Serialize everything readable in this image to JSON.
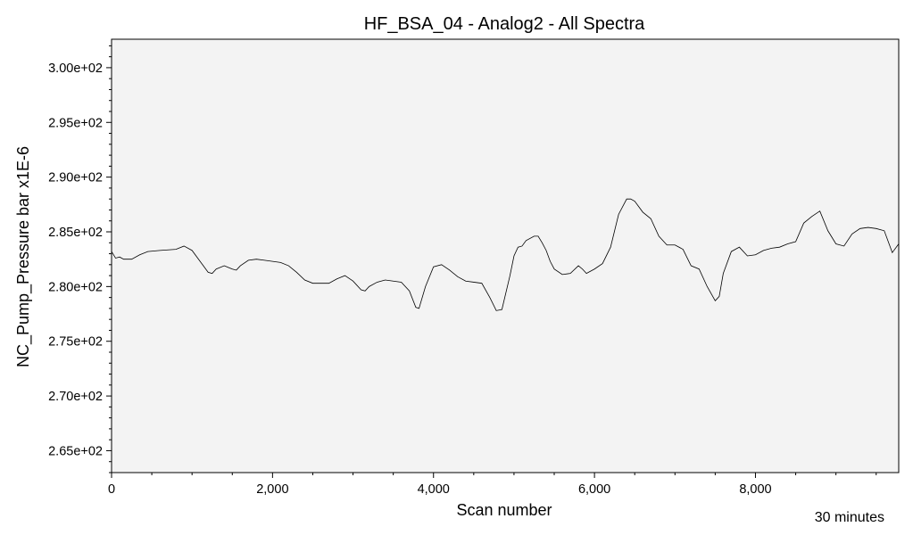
{
  "chart_data": {
    "type": "line",
    "title": "HF_BSA_04 - Analog2 - All Spectra",
    "xlabel": "Scan number",
    "ylabel": "NC_Pump_Pressure bar x1E-6",
    "xlim": [
      0,
      9780
    ],
    "ylim": [
      263,
      302.6
    ],
    "x_ticks": [
      0,
      2000,
      4000,
      6000,
      8000
    ],
    "x_tick_labels": [
      "0",
      "2,000",
      "4,000",
      "6,000",
      "8,000"
    ],
    "y_ticks": [
      265,
      270,
      275,
      280,
      285,
      290,
      295,
      300
    ],
    "y_tick_labels": [
      "2.65e+02",
      "2.70e+02",
      "2.75e+02",
      "2.80e+02",
      "2.85e+02",
      "2.90e+02",
      "2.95e+02",
      "3.00e+02"
    ],
    "plot_background": "#f3f3f3",
    "line_color": "#000000",
    "series": [
      {
        "x": [
          0,
          50,
          100,
          150,
          250,
          350,
          450,
          600,
          800,
          900,
          1000,
          1100,
          1200,
          1250,
          1300,
          1400,
          1500,
          1550,
          1600,
          1700,
          1800,
          1900,
          2000,
          2100,
          2200,
          2300,
          2400,
          2500,
          2600,
          2700,
          2800,
          2900,
          3000,
          3100,
          3150,
          3200,
          3300,
          3400,
          3500,
          3600,
          3700,
          3780,
          3820,
          3900,
          4000,
          4100,
          4200,
          4300,
          4400,
          4500,
          4600,
          4700,
          4780,
          4850,
          4950,
          5000,
          5050,
          5100,
          5150,
          5250,
          5300,
          5350,
          5400,
          5450,
          5500,
          5600,
          5700,
          5800,
          5850,
          5900,
          6000,
          6100,
          6200,
          6300,
          6400,
          6450,
          6500,
          6600,
          6700,
          6800,
          6900,
          7000,
          7100,
          7200,
          7300,
          7400,
          7500,
          7550,
          7600,
          7700,
          7800,
          7900,
          8000,
          8100,
          8200,
          8300,
          8400,
          8500,
          8600,
          8700,
          8800,
          8900,
          9000,
          9100,
          9200,
          9300,
          9400,
          9500,
          9600,
          9700,
          9780
        ],
        "values": [
          283.2,
          282.6,
          282.7,
          282.5,
          282.5,
          282.9,
          283.2,
          283.3,
          283.4,
          283.7,
          283.3,
          282.3,
          281.3,
          281.2,
          281.6,
          281.9,
          281.6,
          281.5,
          281.9,
          282.4,
          282.5,
          282.4,
          282.3,
          282.2,
          281.9,
          281.3,
          280.6,
          280.3,
          280.3,
          280.3,
          280.7,
          281.0,
          280.5,
          279.7,
          279.6,
          280.0,
          280.4,
          280.6,
          280.5,
          280.4,
          279.6,
          278.1,
          278.0,
          280.0,
          281.8,
          282.0,
          281.5,
          280.9,
          280.5,
          280.4,
          280.3,
          279.0,
          277.8,
          277.9,
          281.0,
          282.8,
          283.6,
          283.7,
          284.2,
          284.6,
          284.6,
          284.0,
          283.3,
          282.3,
          281.6,
          281.1,
          281.2,
          281.9,
          281.6,
          281.2,
          281.6,
          282.1,
          283.6,
          286.6,
          288.0,
          288.0,
          287.8,
          286.8,
          286.2,
          284.6,
          283.8,
          283.8,
          283.4,
          281.9,
          281.6,
          280.0,
          278.7,
          279.1,
          281.2,
          283.2,
          283.6,
          282.8,
          282.9,
          283.3,
          283.5,
          283.6,
          283.9,
          284.1,
          285.8,
          286.4,
          286.9,
          285.1,
          283.9,
          283.7,
          284.8,
          285.3,
          285.4,
          285.3,
          285.1,
          283.1,
          283.9
        ]
      }
    ]
  },
  "footer": {
    "duration": "30 minutes"
  }
}
